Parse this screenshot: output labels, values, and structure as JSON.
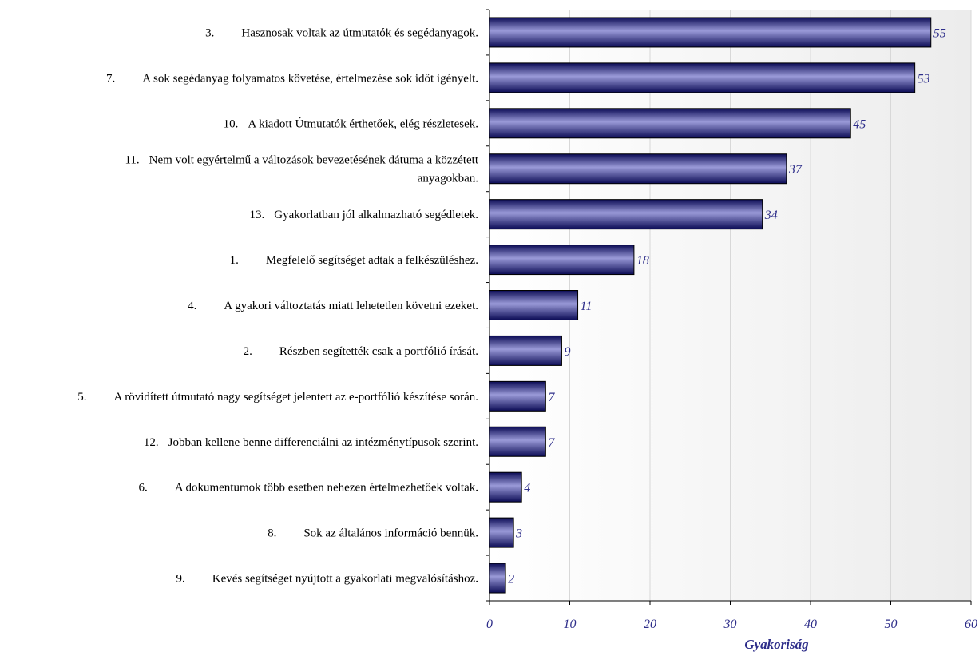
{
  "chart_data": {
    "type": "bar",
    "orientation": "horizontal",
    "categories": [
      "3. Hasznosak voltak az útmutatók és segédanyagok.",
      "7. A sok segédanyag folyamatos követése, értelmezése sok időt igényelt.",
      "10. A kiadott Útmutatók érthetőek, elég részletesek.",
      "11. Nem volt egyértelmű a változások bevezetésének dátuma a közzétett anyagokban.",
      "13. Gyakorlatban jól alkalmazható segédletek.",
      "1. Megfelelő segítséget adtak a felkészüléshez.",
      "4. A gyakori változtatás miatt lehetetlen követni ezeket.",
      "2. Részben segítették csak a portfólió írását.",
      "5. A rövidített útmutató nagy segítséget jelentett az e-portfólió készítése során.",
      "12. Jobban kellene benne differenciálni az intézménytípusok szerint.",
      "6. A dokumentumok több esetben nehezen értelmezhetőek voltak.",
      "8. Sok az általános információ bennük.",
      "9. Kevés segítséget nyújtott a gyakorlati megvalósításhoz."
    ],
    "label_lines": [
      [
        [
          "3.",
          "Hasznosak voltak az útmutatók és segédanyagok."
        ]
      ],
      [
        [
          "7.",
          "A sok segédanyag folyamatos követése, értelmezése sok időt igényelt."
        ]
      ],
      [
        [
          "10.",
          "A kiadott Útmutatók érthetőek, elég részletesek."
        ]
      ],
      [
        [
          "11.",
          "Nem volt egyértelmű a változások bevezetésének dátuma a közzétett"
        ],
        [
          "",
          "anyagokban."
        ]
      ],
      [
        [
          "13.",
          "Gyakorlatban jól alkalmazható segédletek."
        ]
      ],
      [
        [
          "1.",
          "Megfelelő segítséget adtak a felkészüléshez."
        ]
      ],
      [
        [
          "4.",
          "A gyakori változtatás miatt lehetetlen követni ezeket."
        ]
      ],
      [
        [
          "2.",
          "Részben segítették csak a portfólió írását."
        ]
      ],
      [
        [
          "5.",
          "A rövidített útmutató nagy segítséget jelentett az e-portfólió készítése során."
        ]
      ],
      [
        [
          "12.",
          "Jobban kellene benne differenciálni az intézménytípusok szerint."
        ]
      ],
      [
        [
          "6.",
          "A dokumentumok több esetben nehezen értelmezhetőek voltak."
        ]
      ],
      [
        [
          "8.",
          "Sok az általános információ bennük."
        ]
      ],
      [
        [
          "9.",
          "Kevés segítséget nyújtott a gyakorlati megvalósításhoz."
        ]
      ]
    ],
    "values": [
      55,
      53,
      45,
      37,
      34,
      18,
      11,
      9,
      7,
      7,
      4,
      3,
      2
    ],
    "value_labels": [
      "55",
      "53",
      "45",
      "37",
      "34",
      "18",
      "11",
      "9",
      "7",
      "7",
      "4",
      "3",
      "2"
    ],
    "xlabel": "Gyakoriság",
    "xlim": [
      0,
      60
    ],
    "xticks": [
      0,
      10,
      20,
      30,
      40,
      50,
      60
    ],
    "xtick_labels": [
      "0",
      "10",
      "20",
      "30",
      "40",
      "50",
      "60"
    ],
    "grid": "vertical",
    "legend": "none",
    "colors": {
      "bar_dark": "#0b0b55",
      "bar_mid": "#3a3aa8",
      "bar_light": "#9a9ad8",
      "bar_border": "#000000",
      "grid": "#d8d8d8",
      "plot_bg_left": "#ffffff",
      "plot_bg_right": "#ececec",
      "text_accent": "#2e2e8a"
    }
  }
}
